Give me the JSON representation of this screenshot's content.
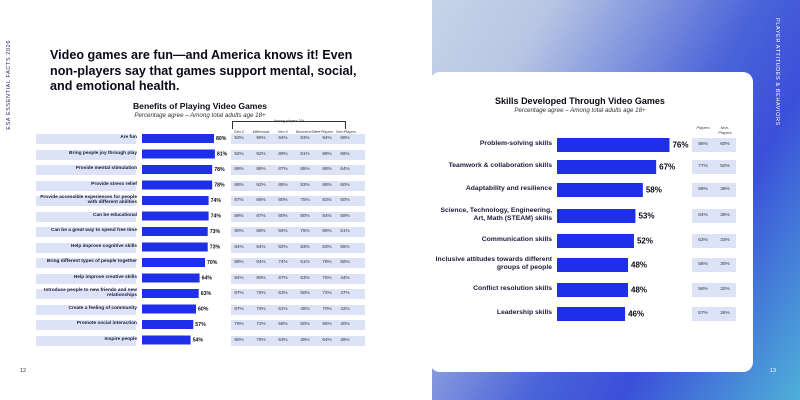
{
  "left": {
    "running_head": "ESA ESSENTIAL FACTS 2026",
    "page_number": "12",
    "headline": "Video games are fun—and America knows it! Even non-players say that games support mental, social, and emotional health."
  },
  "right": {
    "running_head": "PLAYER ATTITUDES & BEHAVIORS",
    "page_number": "13"
  },
  "colors": {
    "bar": "#1f2ee8",
    "band": "#dde3f6",
    "accent_blue": "#3b4fd9"
  },
  "chart_data": [
    {
      "type": "bar",
      "orientation": "horizontal",
      "title": "Benefits of Playing Video Games",
      "subtitle": "Percentage agree – Among total adults age 18+",
      "group_header": "Among players 18+",
      "column_headers": [
        "Gen Z",
        "Millennials",
        "Gen X",
        "Boomers/Silent",
        "Players",
        "Non-Players"
      ],
      "categories": [
        "Are fun",
        "Bring people joy through play",
        "Provide mental stimulation",
        "Provide stress relief",
        "Provide accessible experiences for people with different abilities",
        "Can be educational",
        "Can be a great way to spend free time",
        "Help improve cognitive skills",
        "Bring different types of people together",
        "Help improve creative skills",
        "Introduce people to new friends and new relationships",
        "Create a feeling of community",
        "Promote social interaction",
        "Inspire people"
      ],
      "values": [
        80,
        81,
        78,
        78,
        74,
        74,
        73,
        73,
        70,
        64,
        63,
        60,
        57,
        54
      ],
      "value_labels": [
        "80%",
        "81%",
        "78%",
        "78%",
        "74%",
        "74%",
        "73%",
        "73%",
        "70%",
        "64%",
        "63%",
        "60%",
        "57%",
        "54%"
      ],
      "table": [
        [
          "93%",
          "96%",
          "94%",
          "93%",
          "94%",
          "68%"
        ],
        [
          "92%",
          "92%",
          "89%",
          "81%",
          "89%",
          "66%"
        ],
        [
          "89%",
          "88%",
          "87%",
          "85%",
          "88%",
          "64%"
        ],
        [
          "88%",
          "92%",
          "85%",
          "83%",
          "88%",
          "60%"
        ],
        [
          "87%",
          "86%",
          "80%",
          "75%",
          "83%",
          "60%"
        ],
        [
          "89%",
          "87%",
          "80%",
          "80%",
          "84%",
          "58%"
        ],
        [
          "90%",
          "88%",
          "84%",
          "75%",
          "86%",
          "51%"
        ],
        [
          "84%",
          "84%",
          "82%",
          "83%",
          "83%",
          "55%"
        ],
        [
          "88%",
          "84%",
          "74%",
          "61%",
          "78%",
          "56%"
        ],
        [
          "84%",
          "80%",
          "67%",
          "63%",
          "75%",
          "44%"
        ],
        [
          "87%",
          "78%",
          "63%",
          "50%",
          "72%",
          "47%"
        ],
        [
          "87%",
          "79%",
          "61%",
          "45%",
          "70%",
          "42%"
        ],
        [
          "79%",
          "72%",
          "58%",
          "50%",
          "66%",
          "40%"
        ],
        [
          "80%",
          "76%",
          "53%",
          "38%",
          "64%",
          "36%"
        ]
      ],
      "xlim": [
        0,
        100
      ]
    },
    {
      "type": "bar",
      "orientation": "horizontal",
      "title": "Skills Developed Through Video Games",
      "subtitle": "Percentage agree – Among total adults age 18+",
      "column_headers": [
        "Players",
        "Non-Players"
      ],
      "categories": [
        "Problem-solving skills",
        "Teamwork & collaboration skills",
        "Adaptability and resilience",
        "Science, Technology, Engineering, Art, Math (STEAM) skills",
        "Communication skills",
        "Inclusive attitudes towards different groups of people",
        "Conflict resolution skills",
        "Leadership skills"
      ],
      "values": [
        76,
        67,
        58,
        53,
        52,
        48,
        48,
        46
      ],
      "value_labels": [
        "76%",
        "67%",
        "58%",
        "53%",
        "52%",
        "48%",
        "48%",
        "46%"
      ],
      "table": [
        [
          "88%",
          "60%"
        ],
        [
          "77%",
          "50%"
        ],
        [
          "69%",
          "38%"
        ],
        [
          "64%",
          "36%"
        ],
        [
          "63%",
          "33%"
        ],
        [
          "58%",
          "30%"
        ],
        [
          "58%",
          "32%"
        ],
        [
          "57%",
          "26%"
        ]
      ],
      "xlim": [
        0,
        100
      ]
    }
  ]
}
